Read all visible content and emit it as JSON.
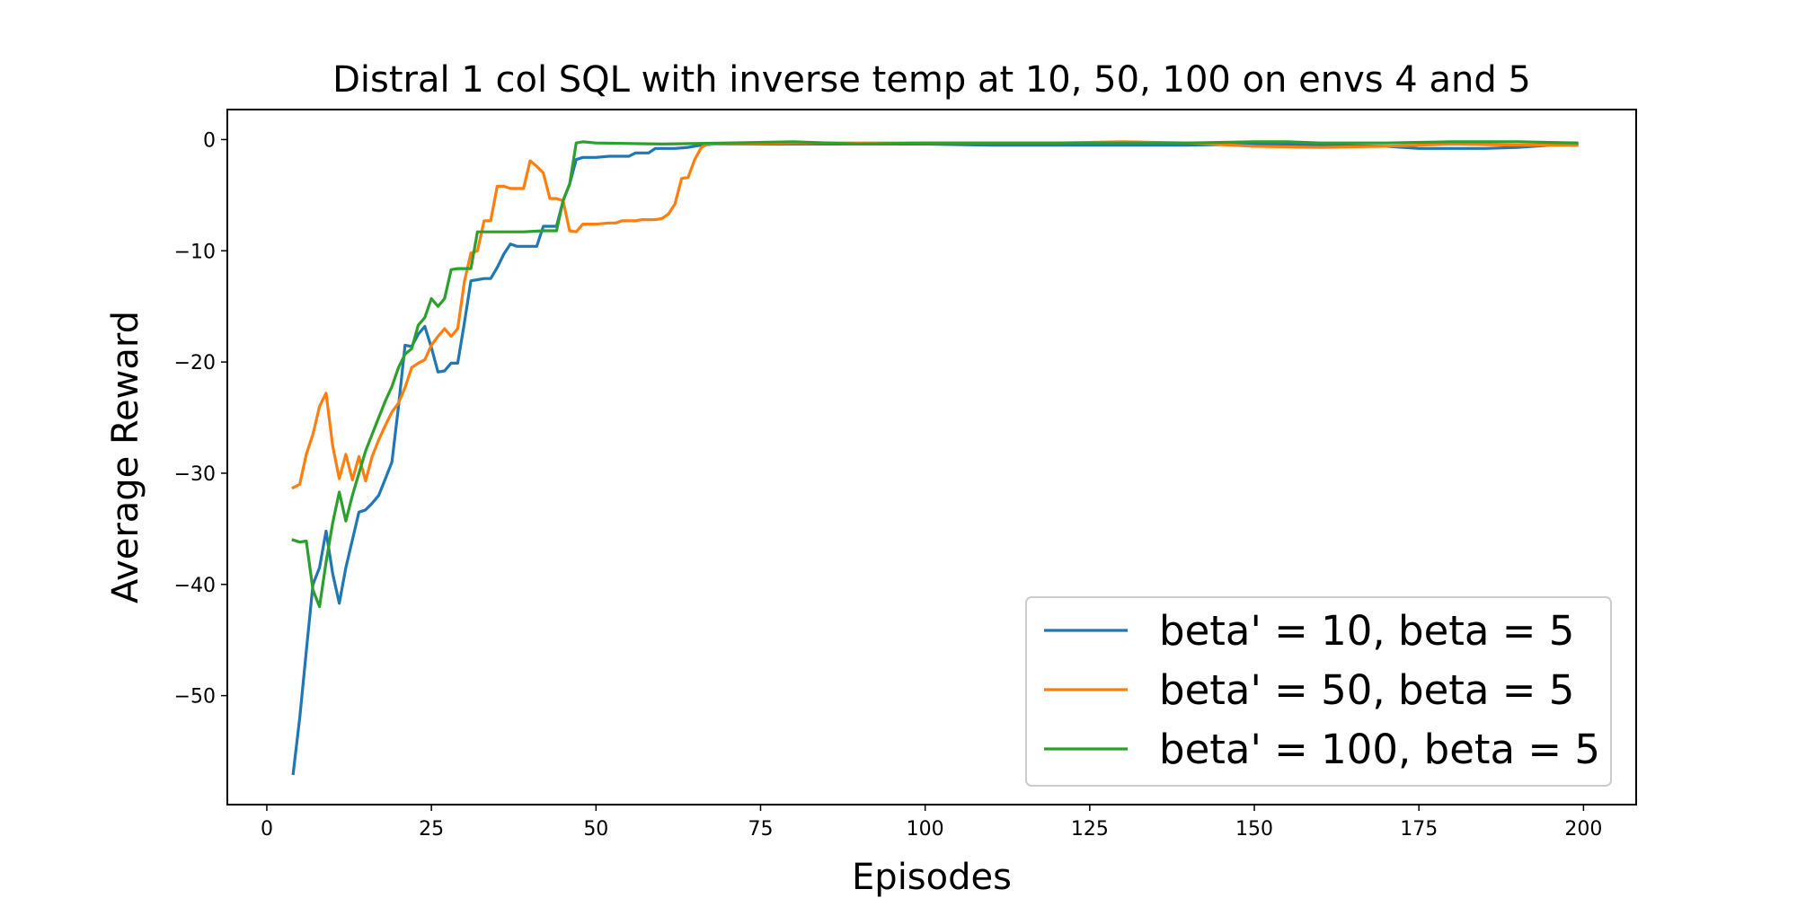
{
  "chart_data": {
    "type": "line",
    "title": "Distral 1 col SQL with inverse temp at 10, 50, 100 on envs 4 and 5",
    "xlabel": "Episodes",
    "ylabel": "Average Reward",
    "xlim": [
      -6,
      208
    ],
    "ylim": [
      -59.8,
      2.7
    ],
    "xticks": [
      0,
      25,
      50,
      75,
      100,
      125,
      150,
      175,
      200
    ],
    "yticks": [
      0,
      -10,
      -20,
      -30,
      -40,
      -50
    ],
    "xtick_labels": [
      "0",
      "25",
      "50",
      "75",
      "100",
      "125",
      "150",
      "175",
      "200"
    ],
    "ytick_labels": [
      "0",
      "−10",
      "−20",
      "−30",
      "−40",
      "−50"
    ],
    "grid": false,
    "legend_position": "lower-right",
    "series": [
      {
        "name": "beta' = 10, beta = 5",
        "color": "#1f77b4",
        "points": [
          [
            4,
            -57
          ],
          [
            5,
            -52
          ],
          [
            6,
            -46
          ],
          [
            7,
            -40
          ],
          [
            8,
            -38.5
          ],
          [
            9,
            -35.2
          ],
          [
            10,
            -39
          ],
          [
            11,
            -41.7
          ],
          [
            12,
            -38.5
          ],
          [
            13,
            -36
          ],
          [
            14,
            -33.5
          ],
          [
            15,
            -33.3
          ],
          [
            16,
            -32.7
          ],
          [
            17,
            -32
          ],
          [
            18,
            -30.5
          ],
          [
            19,
            -29
          ],
          [
            20,
            -24
          ],
          [
            21,
            -18.5
          ],
          [
            22,
            -18.6
          ],
          [
            23,
            -17.5
          ],
          [
            24,
            -16.8
          ],
          [
            25,
            -18.7
          ],
          [
            26,
            -20.9
          ],
          [
            27,
            -20.8
          ],
          [
            28,
            -20.1
          ],
          [
            29,
            -20.1
          ],
          [
            30,
            -16.5
          ],
          [
            31,
            -12.7
          ],
          [
            32,
            -12.6
          ],
          [
            33,
            -12.5
          ],
          [
            34,
            -12.5
          ],
          [
            35,
            -11.5
          ],
          [
            36,
            -10.3
          ],
          [
            37,
            -9.4
          ],
          [
            38,
            -9.6
          ],
          [
            39,
            -9.6
          ],
          [
            40,
            -9.6
          ],
          [
            41,
            -9.6
          ],
          [
            42,
            -7.8
          ],
          [
            43,
            -7.8
          ],
          [
            44,
            -7.8
          ],
          [
            45,
            -5.5
          ],
          [
            46,
            -4
          ],
          [
            47,
            -1.8
          ],
          [
            48,
            -1.6
          ],
          [
            49,
            -1.6
          ],
          [
            50,
            -1.6
          ],
          [
            52,
            -1.5
          ],
          [
            55,
            -1.5
          ],
          [
            56,
            -1.2
          ],
          [
            58,
            -1.2
          ],
          [
            59,
            -0.8
          ],
          [
            62,
            -0.8
          ],
          [
            64,
            -0.7
          ],
          [
            66,
            -0.5
          ],
          [
            68,
            -0.4
          ],
          [
            80,
            -0.4
          ],
          [
            90,
            -0.4
          ],
          [
            100,
            -0.4
          ],
          [
            110,
            -0.5
          ],
          [
            125,
            -0.5
          ],
          [
            140,
            -0.5
          ],
          [
            150,
            -0.4
          ],
          [
            160,
            -0.5
          ],
          [
            170,
            -0.6
          ],
          [
            175,
            -0.8
          ],
          [
            180,
            -0.8
          ],
          [
            185,
            -0.8
          ],
          [
            190,
            -0.7
          ],
          [
            195,
            -0.5
          ],
          [
            199,
            -0.5
          ]
        ]
      },
      {
        "name": "beta' = 50, beta = 5",
        "color": "#ff7f0e",
        "points": [
          [
            4,
            -31.3
          ],
          [
            5,
            -31
          ],
          [
            6,
            -28.3
          ],
          [
            7,
            -26.5
          ],
          [
            8,
            -24
          ],
          [
            9,
            -22.8
          ],
          [
            10,
            -27.5
          ],
          [
            11,
            -30.5
          ],
          [
            12,
            -28.3
          ],
          [
            13,
            -30.6
          ],
          [
            14,
            -28.5
          ],
          [
            15,
            -30.7
          ],
          [
            16,
            -28.5
          ],
          [
            17,
            -27
          ],
          [
            18,
            -25.7
          ],
          [
            19,
            -24.5
          ],
          [
            20,
            -23.7
          ],
          [
            21,
            -22.3
          ],
          [
            22,
            -20.5
          ],
          [
            23,
            -20.1
          ],
          [
            24,
            -19.8
          ],
          [
            25,
            -18.5
          ],
          [
            26,
            -17.7
          ],
          [
            27,
            -17
          ],
          [
            28,
            -17.7
          ],
          [
            29,
            -17
          ],
          [
            30,
            -12.8
          ],
          [
            31,
            -10.2
          ],
          [
            32,
            -10
          ],
          [
            33,
            -7.3
          ],
          [
            34,
            -7.3
          ],
          [
            35,
            -4.2
          ],
          [
            36,
            -4.2
          ],
          [
            37,
            -4.4
          ],
          [
            38,
            -4.4
          ],
          [
            39,
            -4.4
          ],
          [
            40,
            -1.9
          ],
          [
            41,
            -2.4
          ],
          [
            42,
            -3
          ],
          [
            43,
            -5.3
          ],
          [
            44,
            -5.3
          ],
          [
            45,
            -5.5
          ],
          [
            46,
            -8.2
          ],
          [
            47,
            -8.3
          ],
          [
            48,
            -7.6
          ],
          [
            49,
            -7.6
          ],
          [
            50,
            -7.6
          ],
          [
            52,
            -7.5
          ],
          [
            53,
            -7.5
          ],
          [
            54,
            -7.3
          ],
          [
            56,
            -7.3
          ],
          [
            57,
            -7.2
          ],
          [
            59,
            -7.2
          ],
          [
            60,
            -7.1
          ],
          [
            61,
            -6.7
          ],
          [
            62,
            -5.8
          ],
          [
            63,
            -3.5
          ],
          [
            64,
            -3.4
          ],
          [
            65,
            -1.8
          ],
          [
            66,
            -0.7
          ],
          [
            67,
            -0.4
          ],
          [
            68,
            -0.4
          ],
          [
            80,
            -0.3
          ],
          [
            90,
            -0.3
          ],
          [
            100,
            -0.3
          ],
          [
            110,
            -0.3
          ],
          [
            120,
            -0.3
          ],
          [
            130,
            -0.2
          ],
          [
            140,
            -0.3
          ],
          [
            150,
            -0.6
          ],
          [
            160,
            -0.7
          ],
          [
            170,
            -0.6
          ],
          [
            175,
            -0.5
          ],
          [
            180,
            -0.4
          ],
          [
            190,
            -0.5
          ],
          [
            199,
            -0.5
          ]
        ]
      },
      {
        "name": "beta' = 100, beta = 5",
        "color": "#2ca02c",
        "points": [
          [
            4,
            -36
          ],
          [
            5,
            -36.2
          ],
          [
            6,
            -36.1
          ],
          [
            7,
            -40.5
          ],
          [
            8,
            -42
          ],
          [
            9,
            -38
          ],
          [
            10,
            -34.5
          ],
          [
            11,
            -31.7
          ],
          [
            12,
            -34.3
          ],
          [
            13,
            -32
          ],
          [
            14,
            -30
          ],
          [
            15,
            -28
          ],
          [
            16,
            -26.5
          ],
          [
            17,
            -25
          ],
          [
            18,
            -23.5
          ],
          [
            19,
            -22.2
          ],
          [
            20,
            -20.5
          ],
          [
            21,
            -19.3
          ],
          [
            22,
            -18.8
          ],
          [
            23,
            -16.7
          ],
          [
            24,
            -16
          ],
          [
            25,
            -14.3
          ],
          [
            26,
            -15
          ],
          [
            27,
            -14.3
          ],
          [
            28,
            -11.7
          ],
          [
            29,
            -11.6
          ],
          [
            30,
            -11.6
          ],
          [
            31,
            -11.6
          ],
          [
            32,
            -8.3
          ],
          [
            33,
            -8.3
          ],
          [
            36,
            -8.3
          ],
          [
            39,
            -8.3
          ],
          [
            42,
            -8.2
          ],
          [
            44,
            -8.2
          ],
          [
            45,
            -5.5
          ],
          [
            46,
            -4
          ],
          [
            47,
            -0.3
          ],
          [
            48,
            -0.2
          ],
          [
            50,
            -0.3
          ],
          [
            60,
            -0.4
          ],
          [
            70,
            -0.3
          ],
          [
            80,
            -0.2
          ],
          [
            90,
            -0.4
          ],
          [
            100,
            -0.3
          ],
          [
            110,
            -0.3
          ],
          [
            120,
            -0.3
          ],
          [
            130,
            -0.3
          ],
          [
            140,
            -0.3
          ],
          [
            150,
            -0.2
          ],
          [
            155,
            -0.2
          ],
          [
            160,
            -0.3
          ],
          [
            170,
            -0.3
          ],
          [
            180,
            -0.2
          ],
          [
            190,
            -0.2
          ],
          [
            199,
            -0.3
          ]
        ]
      }
    ]
  }
}
